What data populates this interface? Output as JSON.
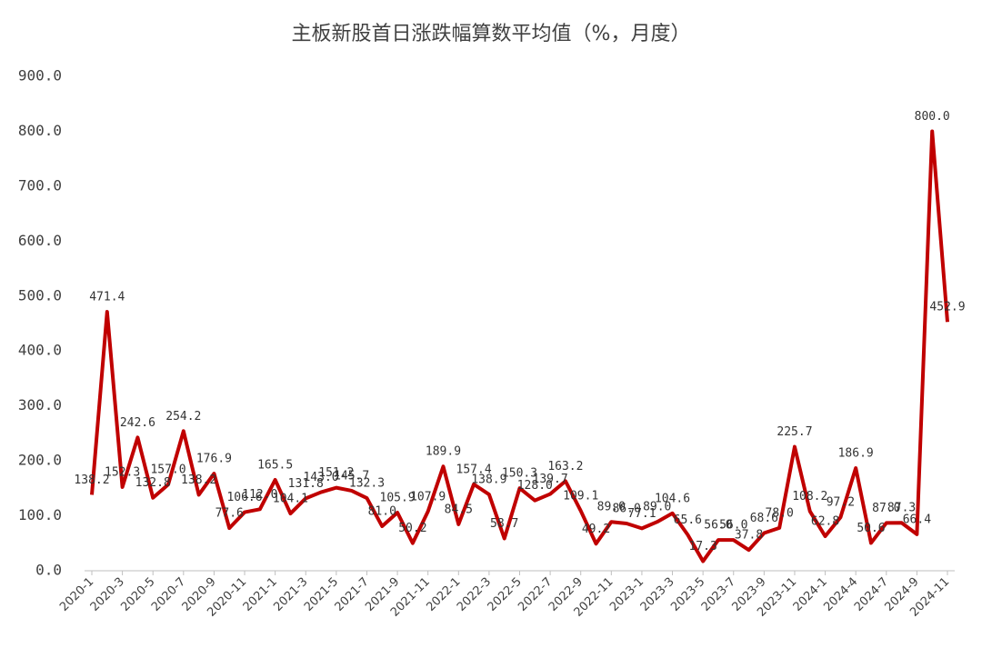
{
  "chart_data": {
    "type": "line",
    "title": "主板新股首日涨跌幅算数平均值（%，月度）",
    "categories": [
      "2020-1",
      null,
      "2020-3",
      null,
      "2020-5",
      null,
      "2020-7",
      null,
      "2020-9",
      null,
      "2020-11",
      null,
      "2021-1",
      null,
      "2021-3",
      null,
      "2021-5",
      null,
      "2021-7",
      null,
      "2021-9",
      null,
      "2021-11",
      null,
      "2022-1",
      null,
      "2022-3",
      null,
      "2022-5",
      null,
      "2022-7",
      null,
      "2022-9",
      null,
      "2022-11",
      null,
      "2023-1",
      null,
      "2023-3",
      null,
      "2023-5",
      null,
      "2023-7",
      null,
      "2023-9",
      null,
      "2023-11",
      null,
      "2024-1",
      null,
      "2024-4",
      null,
      "2024-7",
      null,
      "2024-9",
      null,
      "2024-11"
    ],
    "series": [
      {
        "name": "首日涨跌幅",
        "color": "#c00000",
        "values": [
          138.2,
          471.4,
          152.3,
          242.6,
          132.8,
          157,
          254.2,
          138.2,
          176.9,
          77.6,
          106.6,
          112,
          165.5,
          104.1,
          131.8,
          143,
          151.2,
          145.7,
          132.3,
          81,
          105.9,
          50.2,
          107.9,
          189.9,
          84.5,
          157.4,
          138.9,
          58.7,
          150.3,
          128,
          139.7,
          163.2,
          109.1,
          49.2,
          89,
          86,
          77.1,
          89,
          104.6,
          65.6,
          17.3,
          56,
          56,
          37.8,
          68.6,
          78,
          225.7,
          108.2,
          62.8,
          97.2,
          186.9,
          50.6,
          87,
          87.3,
          66.4,
          800,
          452.9
        ],
        "value_labels": [
          "138.2",
          "471.4",
          "152.3",
          "242.6",
          "132.8",
          "157.0",
          "254.2",
          "138.2",
          "176.9",
          "77.6",
          "106.6",
          "112.0",
          "165.5",
          "104.1",
          "131.8",
          "143.0",
          "151.2",
          "145.7",
          "132.3",
          "81.0",
          "105.9",
          "50.2",
          "107.9",
          "189.9",
          "84.5",
          "157.4",
          "138.9",
          "58.7",
          "150.3",
          "128.0",
          "139.7",
          "163.2",
          "109.1",
          "49.2",
          "89.0",
          "86.0",
          "77.1",
          "89.0",
          "104.6",
          "65.6",
          "17.3",
          "56.0",
          "56.0",
          "37.8",
          "68.6",
          "78.0",
          "225.7",
          "108.2",
          "62.8",
          "97.2",
          "186.9",
          "50.6",
          "87.0",
          "87.3",
          "66.4",
          "800.0",
          "452.9"
        ]
      }
    ],
    "ylim": [
      0,
      900
    ],
    "yticks": [
      {
        "value": 0,
        "label": "0.0"
      },
      {
        "value": 100,
        "label": "100.0"
      },
      {
        "value": 200,
        "label": "200.0"
      },
      {
        "value": 300,
        "label": "300.0"
      },
      {
        "value": 400,
        "label": "400.0"
      },
      {
        "value": 500,
        "label": "500.0"
      },
      {
        "value": 600,
        "label": "600.0"
      },
      {
        "value": 700,
        "label": "700.0"
      },
      {
        "value": 800,
        "label": "800.0"
      },
      {
        "value": 900,
        "label": "900.0"
      }
    ],
    "grid": false
  }
}
